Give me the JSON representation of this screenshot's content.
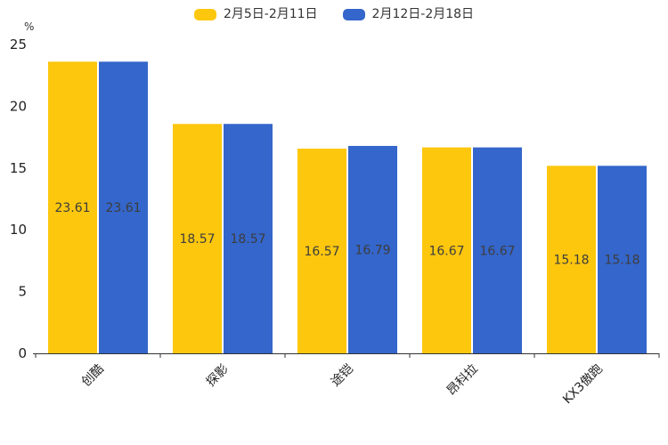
{
  "chart_data": {
    "type": "bar",
    "categories": [
      "创酷",
      "探影",
      "途铠",
      "昂科拉",
      "KX3傲跑"
    ],
    "series": [
      {
        "name": "2月5日-2月11日",
        "color": "#FDC70E",
        "values": [
          23.61,
          18.57,
          16.57,
          16.67,
          15.18
        ]
      },
      {
        "name": "2月12日-2月18日",
        "color": "#3466CB",
        "values": [
          23.61,
          18.57,
          16.79,
          16.67,
          15.18
        ]
      }
    ],
    "value_labels": [
      "23.61",
      "18.57",
      "16.57",
      "16.67",
      "15.18",
      "23.61",
      "18.57",
      "16.79",
      "16.67",
      "15.18"
    ],
    "title": "",
    "xlabel": "",
    "ylabel": "%",
    "ylim": [
      0,
      25
    ],
    "yticks": [
      0,
      5,
      10,
      15,
      20,
      25
    ],
    "grid": false,
    "legend_position": "top",
    "x_label_rotation": -45
  },
  "colors": {
    "background": "#ffffff",
    "axis_line": "#333333",
    "axis_text": "#222222",
    "value_label_text": "#3d3d3d"
  }
}
